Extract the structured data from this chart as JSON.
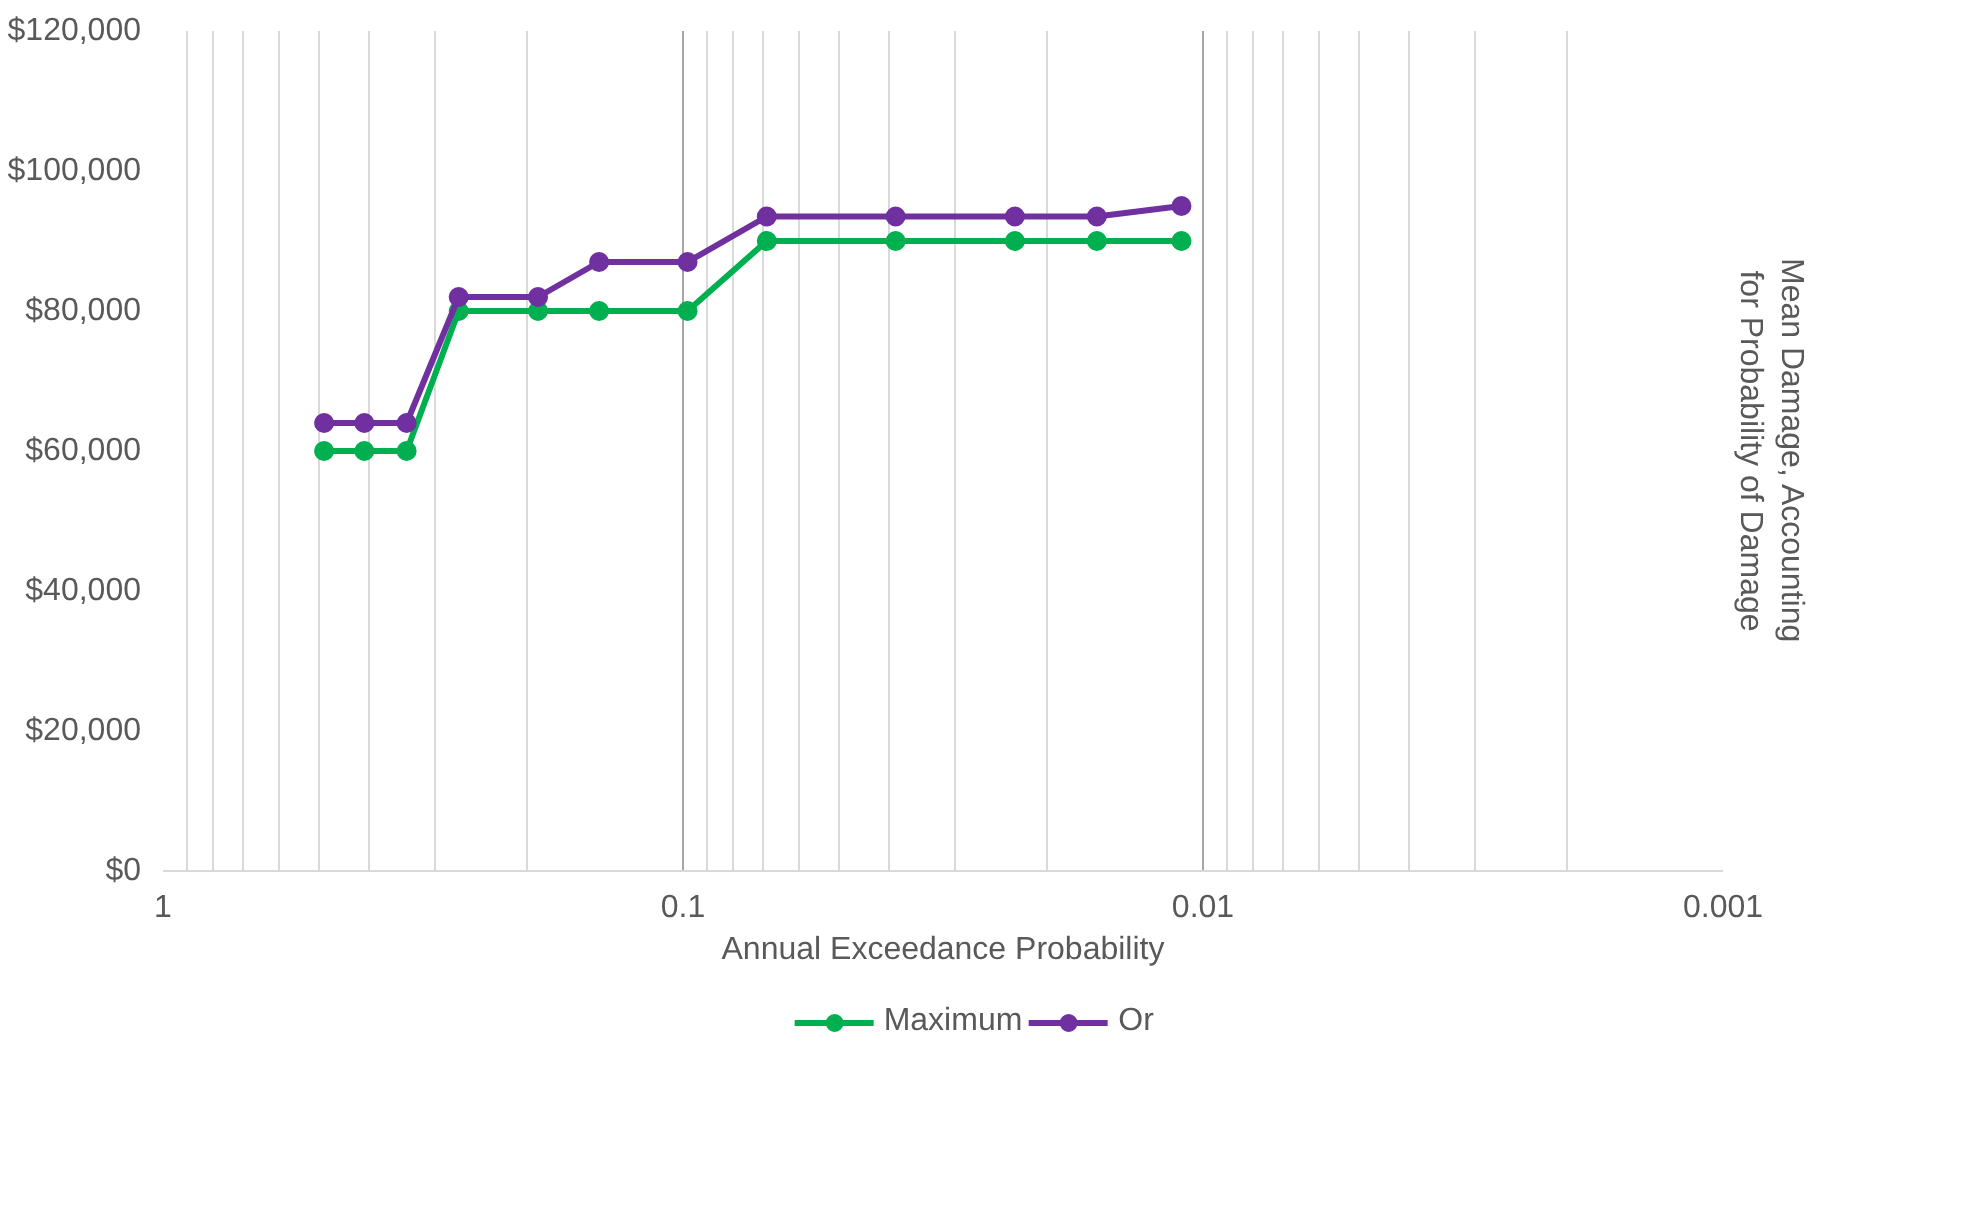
{
  "chart_data": {
    "type": "line",
    "xlabel": "Annual Exceedance Probability",
    "ylabel": "Mean Damage, Accounting for Probability of Damage",
    "x": [
      0.49,
      0.41,
      0.34,
      0.27,
      0.19,
      0.145,
      0.098,
      0.069,
      0.039,
      0.023,
      0.016,
      0.011
    ],
    "series": [
      {
        "name": "Maximum",
        "color": "#00b050",
        "values": [
          60000,
          60000,
          60000,
          80000,
          80000,
          80000,
          80000,
          90000,
          90000,
          90000,
          90000,
          90000
        ]
      },
      {
        "name": "Or",
        "color": "#7030a0",
        "values": [
          64000,
          64000,
          64000,
          82000,
          82000,
          87000,
          87000,
          93500,
          93500,
          93500,
          93500,
          95000
        ]
      }
    ],
    "log": "x",
    "xlim": [
      1,
      0.001
    ],
    "xticks": [
      1,
      0.1,
      0.01,
      0.001
    ],
    "ylim": [
      0,
      120000
    ],
    "yticks": [
      {
        "value": 0,
        "label": "$0"
      },
      {
        "value": 20000,
        "label": "$20,000"
      },
      {
        "value": 40000,
        "label": "$40,000"
      },
      {
        "value": 60000,
        "label": "$60,000"
      },
      {
        "value": 80000,
        "label": "$80,000"
      },
      {
        "value": 100000,
        "label": "$100,000"
      },
      {
        "value": 120000,
        "label": "$120,000"
      }
    ],
    "grid": "x",
    "legend": "bottom",
    "marker": "circle",
    "line_style": "solid"
  }
}
